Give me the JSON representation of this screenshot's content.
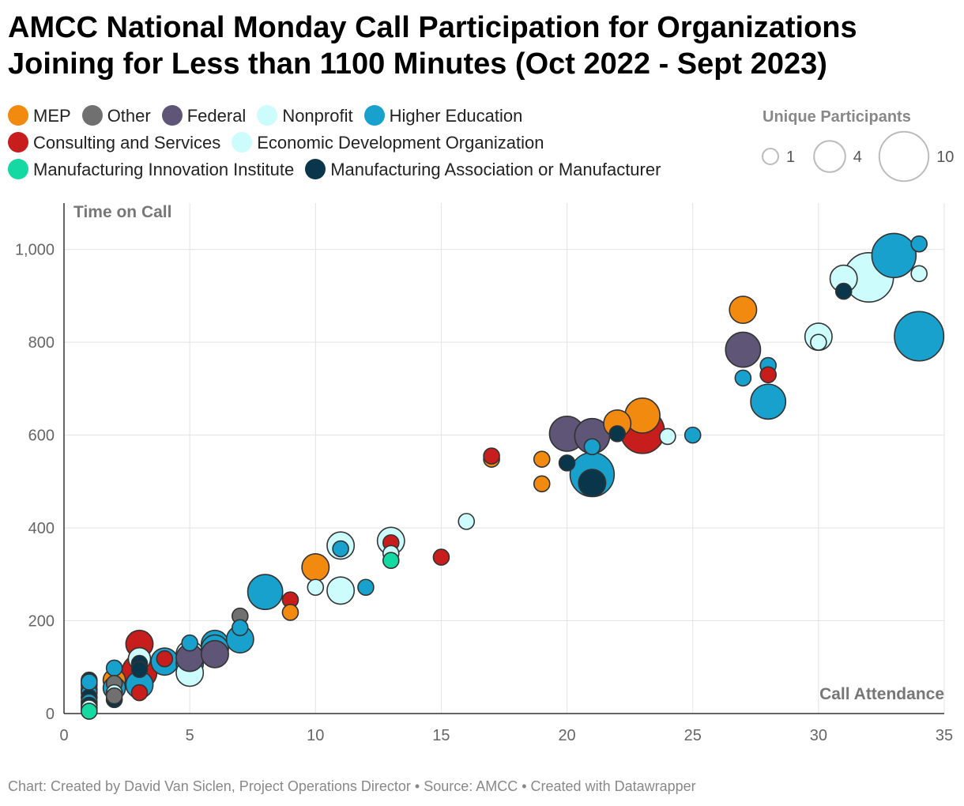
{
  "header": {
    "title_line1": "AMCC National Monday Call Participation for Organizations",
    "title_line2": "Joining for Less than 1100 Minutes (Oct 2022 - Sept 2023)"
  },
  "legend": {
    "categories": [
      {
        "label": "MEP",
        "color": "#f28a10"
      },
      {
        "label": "Other",
        "color": "#707070"
      },
      {
        "label": "Federal",
        "color": "#5e5577"
      },
      {
        "label": "Nonprofit",
        "color": "#ccfcfc"
      },
      {
        "label": "Higher Education",
        "color": "#18a1cd"
      },
      {
        "label": "Consulting and Services",
        "color": "#c71e1d"
      },
      {
        "label": "Economic Development Organization",
        "color": "#ccfcfc"
      },
      {
        "label": "Manufacturing Innovation Institute",
        "color": "#15d9a2"
      },
      {
        "label": "Manufacturing Association or Manufacturer",
        "color": "#09364a"
      }
    ],
    "size_title": "Unique Participants",
    "size_values": [
      {
        "value": 1,
        "label": "1"
      },
      {
        "value": 4,
        "label": "4"
      },
      {
        "value": 10,
        "label": "10"
      }
    ]
  },
  "chart_data": {
    "type": "scatter",
    "title": "AMCC National Monday Call Participation for Organizations Joining for Less than 1100 Minutes (Oct 2022 - Sept 2023)",
    "xlabel": "Call Attendance",
    "ylabel": "Time on Call",
    "xlim": [
      0,
      35
    ],
    "ylim": [
      0,
      1100
    ],
    "x_ticks": [
      0,
      5,
      10,
      15,
      20,
      25,
      30,
      35
    ],
    "y_ticks": [
      0,
      200,
      400,
      600,
      800,
      1000
    ],
    "x_tick_labels": [
      "0",
      "5",
      "10",
      "15",
      "20",
      "25",
      "30",
      "35"
    ],
    "y_tick_labels": [
      "0",
      "200",
      "400",
      "600",
      "800",
      "1,000"
    ],
    "size_encoding": "Unique Participants",
    "points": [
      {
        "x": 1,
        "y": 72,
        "c": "Manufacturing Association or Manufacturer",
        "s": 1
      },
      {
        "x": 1,
        "y": 62,
        "c": "Other",
        "s": 1
      },
      {
        "x": 1,
        "y": 52,
        "c": "MEP",
        "s": 1
      },
      {
        "x": 1,
        "y": 45,
        "c": "Higher Education",
        "s": 1
      },
      {
        "x": 1,
        "y": 35,
        "c": "Manufacturing Association or Manufacturer",
        "s": 1
      },
      {
        "x": 1,
        "y": 25,
        "c": "Higher Education",
        "s": 1
      },
      {
        "x": 1,
        "y": 18,
        "c": "Manufacturing Association or Manufacturer",
        "s": 1
      },
      {
        "x": 1,
        "y": 12,
        "c": "Nonprofit",
        "s": 1
      },
      {
        "x": 1,
        "y": 5,
        "c": "Manufacturing Innovation Institute",
        "s": 1
      },
      {
        "x": 1,
        "y": 68,
        "c": "Higher Education",
        "s": 1
      },
      {
        "x": 2,
        "y": 98,
        "c": "Higher Education",
        "s": 1
      },
      {
        "x": 2,
        "y": 72,
        "c": "MEP",
        "s": 2
      },
      {
        "x": 2,
        "y": 65,
        "c": "Other",
        "s": 1
      },
      {
        "x": 2,
        "y": 55,
        "c": "Higher Education",
        "s": 2
      },
      {
        "x": 2,
        "y": 45,
        "c": "Nonprofit",
        "s": 1
      },
      {
        "x": 2,
        "y": 30,
        "c": "Manufacturing Association or Manufacturer",
        "s": 1
      },
      {
        "x": 2,
        "y": 38,
        "c": "Other",
        "s": 1
      },
      {
        "x": 3,
        "y": 150,
        "c": "Consulting and Services",
        "s": 3
      },
      {
        "x": 3,
        "y": 118,
        "c": "Nonprofit",
        "s": 2
      },
      {
        "x": 3,
        "y": 108,
        "c": "Manufacturing Association or Manufacturer",
        "s": 1
      },
      {
        "x": 3,
        "y": 90,
        "c": "Consulting and Services",
        "s": 5
      },
      {
        "x": 3,
        "y": 95,
        "c": "Manufacturing Association or Manufacturer",
        "s": 1
      },
      {
        "x": 3,
        "y": 62,
        "c": "Higher Education",
        "s": 3
      },
      {
        "x": 3,
        "y": 45,
        "c": "Consulting and Services",
        "s": 1
      },
      {
        "x": 4,
        "y": 118,
        "c": "Consulting and Services",
        "s": 1
      },
      {
        "x": 4,
        "y": 112,
        "c": "Higher Education",
        "s": 3
      },
      {
        "x": 5,
        "y": 152,
        "c": "Higher Education",
        "s": 1
      },
      {
        "x": 5,
        "y": 128,
        "c": "Nonprofit",
        "s": 3
      },
      {
        "x": 5,
        "y": 108,
        "c": "Higher Education",
        "s": 3
      },
      {
        "x": 5,
        "y": 88,
        "c": "Nonprofit",
        "s": 3
      },
      {
        "x": 5,
        "y": 120,
        "c": "Federal",
        "s": 3
      },
      {
        "x": 6,
        "y": 150,
        "c": "Higher Education",
        "s": 3
      },
      {
        "x": 6,
        "y": 140,
        "c": "Higher Education",
        "s": 3
      },
      {
        "x": 6,
        "y": 128,
        "c": "Federal",
        "s": 3
      },
      {
        "x": 7,
        "y": 210,
        "c": "Other",
        "s": 1
      },
      {
        "x": 7,
        "y": 185,
        "c": "Higher Education",
        "s": 1
      },
      {
        "x": 7,
        "y": 160,
        "c": "Higher Education",
        "s": 3
      },
      {
        "x": 8,
        "y": 262,
        "c": "Higher Education",
        "s": 5
      },
      {
        "x": 9,
        "y": 245,
        "c": "Consulting and Services",
        "s": 1
      },
      {
        "x": 9,
        "y": 218,
        "c": "MEP",
        "s": 1
      },
      {
        "x": 10,
        "y": 315,
        "c": "MEP",
        "s": 3
      },
      {
        "x": 10,
        "y": 272,
        "c": "Nonprofit",
        "s": 1
      },
      {
        "x": 11,
        "y": 362,
        "c": "Nonprofit",
        "s": 3
      },
      {
        "x": 11,
        "y": 355,
        "c": "Higher Education",
        "s": 1
      },
      {
        "x": 11,
        "y": 265,
        "c": "Nonprofit",
        "s": 3
      },
      {
        "x": 12,
        "y": 272,
        "c": "Higher Education",
        "s": 1
      },
      {
        "x": 13,
        "y": 372,
        "c": "Nonprofit",
        "s": 3
      },
      {
        "x": 13,
        "y": 368,
        "c": "Consulting and Services",
        "s": 1
      },
      {
        "x": 13,
        "y": 345,
        "c": "Nonprofit",
        "s": 1
      },
      {
        "x": 13,
        "y": 330,
        "c": "Manufacturing Innovation Institute",
        "s": 1
      },
      {
        "x": 15,
        "y": 337,
        "c": "Consulting and Services",
        "s": 1
      },
      {
        "x": 16,
        "y": 414,
        "c": "Nonprofit",
        "s": 1
      },
      {
        "x": 17,
        "y": 548,
        "c": "MEP",
        "s": 1
      },
      {
        "x": 17,
        "y": 555,
        "c": "Consulting and Services",
        "s": 1
      },
      {
        "x": 19,
        "y": 548,
        "c": "MEP",
        "s": 1
      },
      {
        "x": 19,
        "y": 495,
        "c": "MEP",
        "s": 1
      },
      {
        "x": 20,
        "y": 603,
        "c": "Federal",
        "s": 5
      },
      {
        "x": 20,
        "y": 540,
        "c": "Manufacturing Association or Manufacturer",
        "s": 1
      },
      {
        "x": 21,
        "y": 598,
        "c": "Federal",
        "s": 5
      },
      {
        "x": 21,
        "y": 575,
        "c": "Higher Education",
        "s": 1
      },
      {
        "x": 21,
        "y": 515,
        "c": "Higher Education",
        "s": 8
      },
      {
        "x": 21,
        "y": 497,
        "c": "Manufacturing Association or Manufacturer",
        "s": 3
      },
      {
        "x": 22,
        "y": 625,
        "c": "MEP",
        "s": 3
      },
      {
        "x": 22,
        "y": 603,
        "c": "Manufacturing Association or Manufacturer",
        "s": 1
      },
      {
        "x": 23,
        "y": 642,
        "c": "MEP",
        "s": 5
      },
      {
        "x": 23,
        "y": 608,
        "c": "Consulting and Services",
        "s": 8
      },
      {
        "x": 24,
        "y": 597,
        "c": "Nonprofit",
        "s": 1
      },
      {
        "x": 25,
        "y": 600,
        "c": "Higher Education",
        "s": 1
      },
      {
        "x": 27,
        "y": 870,
        "c": "MEP",
        "s": 3
      },
      {
        "x": 27,
        "y": 784,
        "c": "Federal",
        "s": 5
      },
      {
        "x": 27,
        "y": 723,
        "c": "Higher Education",
        "s": 1
      },
      {
        "x": 28,
        "y": 750,
        "c": "Higher Education",
        "s": 1
      },
      {
        "x": 28,
        "y": 730,
        "c": "Consulting and Services",
        "s": 1
      },
      {
        "x": 28,
        "y": 672,
        "c": "Higher Education",
        "s": 5
      },
      {
        "x": 30,
        "y": 812,
        "c": "Nonprofit",
        "s": 3
      },
      {
        "x": 30,
        "y": 800,
        "c": "Nonprofit",
        "s": 1
      },
      {
        "x": 31,
        "y": 937,
        "c": "Nonprofit",
        "s": 3
      },
      {
        "x": 31,
        "y": 910,
        "c": "Manufacturing Association or Manufacturer",
        "s": 1
      },
      {
        "x": 32,
        "y": 940,
        "c": "Economic Development Organization",
        "s": 10
      },
      {
        "x": 33,
        "y": 987,
        "c": "Higher Education",
        "s": 8
      },
      {
        "x": 34,
        "y": 1012,
        "c": "Higher Education",
        "s": 1
      },
      {
        "x": 34,
        "y": 948,
        "c": "Nonprofit",
        "s": 1
      },
      {
        "x": 34,
        "y": 813,
        "c": "Higher Education",
        "s": 10
      }
    ]
  },
  "footer": {
    "credit": "Chart: Created by David Van Siclen, Project Operations Director • Source: AMCC • Created with Datawrapper"
  }
}
